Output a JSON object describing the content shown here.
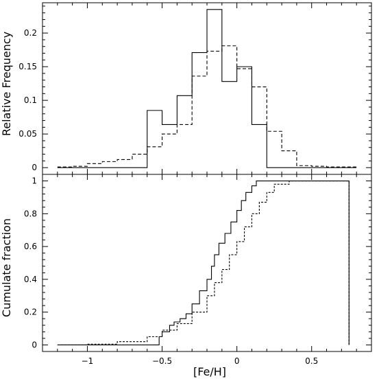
{
  "chart_data": [
    {
      "type": "step",
      "ylabel": "Relative Frequency",
      "xlim": [
        -1.3,
        0.9
      ],
      "ylim": [
        -0.01,
        0.245
      ],
      "xticks": [
        -1,
        -0.5,
        0,
        0.5
      ],
      "xtick_labels": [
        "",
        "",
        "",
        ""
      ],
      "yticks": [
        0,
        0.05,
        0.1,
        0.15,
        0.2
      ],
      "ytick_labels": [
        "0",
        "0.05",
        "0.1",
        "0.15",
        "0.2"
      ],
      "bin_edges": [
        -1.2,
        -1.1,
        -1.0,
        -0.9,
        -0.8,
        -0.7,
        -0.6,
        -0.5,
        -0.4,
        -0.3,
        -0.2,
        -0.1,
        0.0,
        0.1,
        0.2,
        0.3,
        0.4,
        0.5,
        0.6,
        0.7,
        0.8
      ],
      "series": [
        {
          "style": "solid",
          "values": [
            0,
            0,
            0,
            0,
            0,
            0,
            0.085,
            0.064,
            0.107,
            0.171,
            0.235,
            0.128,
            0.15,
            0.064,
            0,
            0,
            0,
            0,
            0,
            0
          ]
        },
        {
          "style": "dashed",
          "values": [
            0.001,
            0.002,
            0.006,
            0.009,
            0.012,
            0.02,
            0.031,
            0.05,
            0.064,
            0.136,
            0.173,
            0.181,
            0.147,
            0.12,
            0.054,
            0.025,
            0.003,
            0.002,
            0.001,
            0.001
          ]
        }
      ]
    },
    {
      "type": "line",
      "xlabel": "[Fe/H]",
      "ylabel": "Cumulate fraction",
      "xlim": [
        -1.3,
        0.9
      ],
      "ylim": [
        -0.04,
        1.04
      ],
      "xticks": [
        -1,
        -0.5,
        0,
        0.5
      ],
      "xtick_labels": [
        "−1",
        "−0.5",
        "0",
        "0.5"
      ],
      "yticks": [
        0,
        0.2,
        0.4,
        0.6,
        0.8,
        1
      ],
      "ytick_labels": [
        "0",
        "0.2",
        "0.4",
        "0.6",
        "0.8",
        "1"
      ],
      "series": [
        {
          "style": "solid",
          "x": [
            -1.2,
            -0.53,
            -0.52,
            -0.5,
            -0.45,
            -0.42,
            -0.38,
            -0.34,
            -0.3,
            -0.25,
            -0.2,
            -0.17,
            -0.15,
            -0.12,
            -0.08,
            -0.04,
            0.0,
            0.03,
            0.06,
            0.1,
            0.13,
            0.2,
            0.75,
            0.75
          ],
          "y": [
            0,
            0.0,
            0.05,
            0.08,
            0.12,
            0.14,
            0.16,
            0.19,
            0.25,
            0.33,
            0.4,
            0.48,
            0.55,
            0.62,
            0.68,
            0.75,
            0.82,
            0.88,
            0.93,
            0.97,
            1.0,
            1.0,
            1.0,
            0
          ]
        },
        {
          "style": "dashed",
          "x": [
            -1.2,
            -1.0,
            -0.8,
            -0.6,
            -0.5,
            -0.4,
            -0.3,
            -0.2,
            -0.15,
            -0.1,
            -0.05,
            0.0,
            0.05,
            0.1,
            0.15,
            0.2,
            0.25,
            0.35,
            0.75,
            0.75
          ],
          "y": [
            0,
            0.005,
            0.02,
            0.05,
            0.09,
            0.13,
            0.2,
            0.3,
            0.38,
            0.46,
            0.55,
            0.63,
            0.72,
            0.8,
            0.87,
            0.93,
            0.98,
            1.0,
            1.0,
            0
          ]
        }
      ]
    }
  ]
}
